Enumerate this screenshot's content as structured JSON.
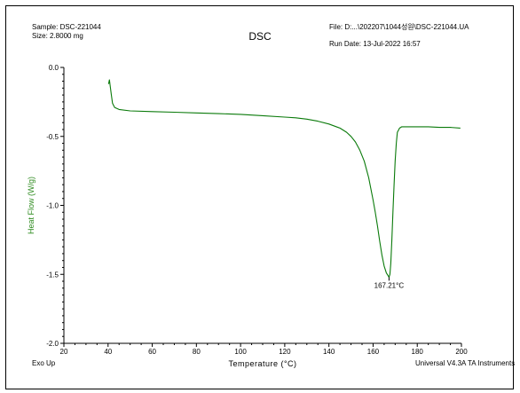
{
  "header": {
    "sample": "Sample: DSC-221044",
    "size": "Size:  2.8000 mg",
    "title": "DSC",
    "file": "File: D:...\\202207\\1044성원\\DSC-221044.UA",
    "run_date": "Run Date: 13-Jul-2022 16:57"
  },
  "footer": {
    "exo": "Exo Up",
    "instrument": "Universal V4.3A TA Instruments"
  },
  "colors": {
    "curve": "#0a7a0a",
    "ylabel": "#2e8b1f",
    "axis": "#000000"
  },
  "chart_data": {
    "type": "line",
    "title": "DSC",
    "xlabel": "Temperature (°C)",
    "ylabel": "Heat Flow (W/g)",
    "xlim": [
      20,
      200
    ],
    "ylim": [
      -2.0,
      0.0
    ],
    "xticks": [
      20,
      40,
      60,
      80,
      100,
      120,
      140,
      160,
      180,
      200
    ],
    "yticks": [
      0.0,
      -0.5,
      -1.0,
      -1.5,
      -2.0
    ],
    "xtick_labels": [
      "20",
      "40",
      "60",
      "80",
      "100",
      "120",
      "140",
      "160",
      "180",
      "200"
    ],
    "ytick_labels": [
      "0.0",
      "-0.5",
      "-1.0",
      "-1.5",
      "-2.0"
    ],
    "grid": false,
    "series": [
      {
        "x": [
          40.2,
          40.6,
          41.0,
          41.5,
          42.0,
          43.0,
          45.0,
          50.0,
          60.0,
          70.0,
          80.0,
          90.0,
          100.0,
          110.0,
          120.0,
          125.0,
          130.0,
          135.0,
          140.0,
          145.0,
          148.0,
          150.0,
          152.0,
          154.0,
          156.0,
          158.0,
          160.0,
          161.0,
          162.0,
          163.0,
          164.0,
          165.0,
          166.0,
          166.8,
          167.21,
          167.6,
          168.0,
          168.5,
          169.0,
          169.5,
          170.0,
          170.5,
          171.0,
          172.0,
          173.0,
          175.0,
          180.0,
          185.0,
          190.0,
          195.0,
          199.5
        ],
        "y": [
          -0.12,
          -0.09,
          -0.14,
          -0.2,
          -0.26,
          -0.29,
          -0.305,
          -0.315,
          -0.32,
          -0.325,
          -0.33,
          -0.335,
          -0.34,
          -0.35,
          -0.36,
          -0.365,
          -0.375,
          -0.39,
          -0.41,
          -0.44,
          -0.47,
          -0.5,
          -0.54,
          -0.6,
          -0.68,
          -0.8,
          -0.96,
          -1.05,
          -1.15,
          -1.26,
          -1.36,
          -1.44,
          -1.49,
          -1.51,
          -1.52,
          -1.5,
          -1.42,
          -1.25,
          -1.05,
          -0.85,
          -0.68,
          -0.55,
          -0.47,
          -0.44,
          -0.43,
          -0.43,
          -0.43,
          -0.43,
          -0.435,
          -0.435,
          -0.44
        ]
      }
    ],
    "annotations": [
      {
        "text": "167.21°C",
        "x": 167.21,
        "y": -1.52
      }
    ]
  }
}
